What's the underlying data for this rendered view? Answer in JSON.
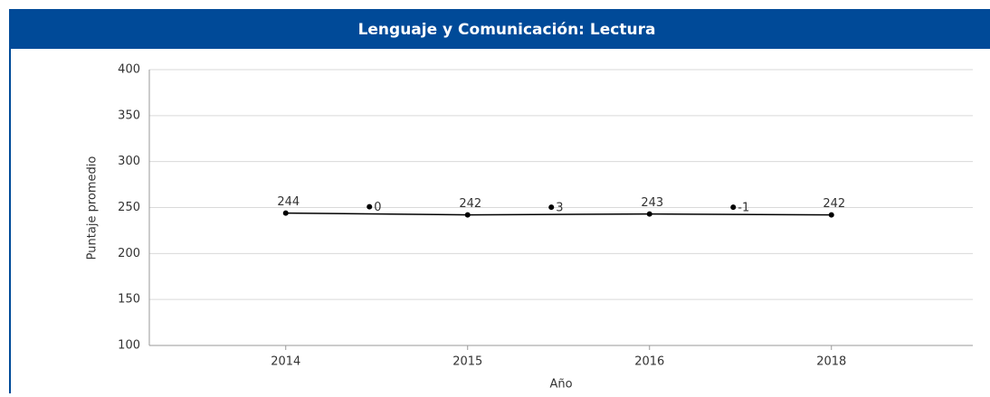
{
  "chart_data": {
    "type": "line",
    "title": "Lenguaje y Comunicación: Lectura",
    "x_label": "Año",
    "y_label": "Puntaje promedio",
    "categories": [
      "2014",
      "2015",
      "2016",
      "2018"
    ],
    "series": [
      {
        "name": "Puntaje promedio",
        "color": "#000000",
        "values": [
          244,
          242,
          243,
          242
        ]
      }
    ],
    "annotations": [
      "0",
      "3",
      "-1"
    ],
    "ylim": [
      100,
      400
    ],
    "yticks": [
      100,
      150,
      200,
      250,
      300,
      350,
      400
    ],
    "grid": true
  }
}
